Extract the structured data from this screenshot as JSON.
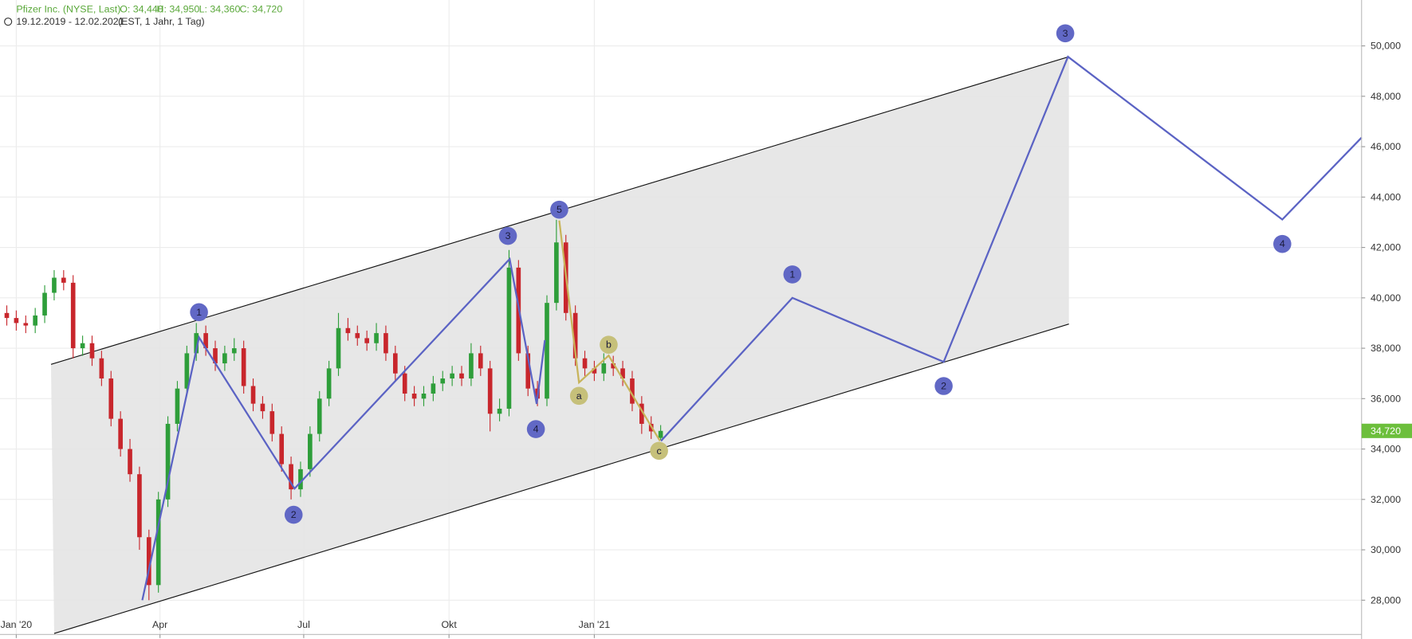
{
  "chart_data": {
    "type": "candlestick",
    "header": {
      "title": "Pfizer Inc. (NYSE, Last)",
      "ohlc": [
        "O: 34,440",
        "H: 34,950",
        "L: 34,360",
        "C: 34,720"
      ],
      "range": "19.12.2019 - 12.02.2021",
      "info": "(EST, 1 Jahr, 1 Tag)"
    },
    "xlim": [
      -10.3,
      851.8
    ],
    "ylim": [
      26.64,
      51.82
    ],
    "xticks": [
      {
        "value": 0,
        "label": "Jan '20"
      },
      {
        "value": 91,
        "label": "Apr"
      },
      {
        "value": 182,
        "label": "Jul"
      },
      {
        "value": 274,
        "label": "Okt"
      },
      {
        "value": 366,
        "label": "Jan '21"
      }
    ],
    "yticks": [
      {
        "value": 28,
        "label": "28,000"
      },
      {
        "value": 30,
        "label": "30,000"
      },
      {
        "value": 32,
        "label": "32,000"
      },
      {
        "value": 34,
        "label": "34,000"
      },
      {
        "value": 36,
        "label": "36,000"
      },
      {
        "value": 38,
        "label": "38,000"
      },
      {
        "value": 40,
        "label": "40,000"
      },
      {
        "value": 42,
        "label": "42,000"
      },
      {
        "value": 44,
        "label": "44,000"
      },
      {
        "value": 46,
        "label": "46,000"
      },
      {
        "value": 48,
        "label": "48,000"
      },
      {
        "value": 50,
        "label": "50,000"
      }
    ],
    "grid": true,
    "up_color": "#2e9e3a",
    "down_color": "#c8262c",
    "x": [
      -12,
      -6,
      0,
      6,
      12,
      18,
      24,
      30,
      36,
      42,
      48,
      54,
      60,
      66,
      72,
      78,
      84,
      90,
      96,
      102,
      108,
      114,
      120,
      126,
      132,
      138,
      144,
      150,
      156,
      162,
      168,
      174,
      180,
      186,
      192,
      198,
      204,
      210,
      216,
      222,
      228,
      234,
      240,
      246,
      252,
      258,
      264,
      270,
      276,
      282,
      288,
      294,
      300,
      306,
      312,
      318,
      324,
      330,
      336,
      342,
      348,
      354,
      360,
      366,
      372,
      378,
      384,
      390,
      396,
      402,
      408
    ],
    "open": [
      39.5,
      39.4,
      39.2,
      39.0,
      38.9,
      39.3,
      40.2,
      40.8,
      40.6,
      38.0,
      38.2,
      37.6,
      36.8,
      35.2,
      34.0,
      33.0,
      30.5,
      28.6,
      32.0,
      35.0,
      36.4,
      37.8,
      38.6,
      38.0,
      37.4,
      37.8,
      38.0,
      36.5,
      35.8,
      35.5,
      34.6,
      33.4,
      32.4,
      33.2,
      34.6,
      36.0,
      37.2,
      38.8,
      38.6,
      38.4,
      38.2,
      38.6,
      37.8,
      37.0,
      36.2,
      36.0,
      36.2,
      36.6,
      36.8,
      37.0,
      36.8,
      37.8,
      37.2,
      35.4,
      35.6,
      41.2,
      37.8,
      36.4,
      36.0,
      39.8,
      42.2,
      39.4,
      37.6,
      37.2,
      37.0,
      37.4,
      37.2,
      36.8,
      35.8,
      35.0,
      34.44
    ],
    "high": [
      39.8,
      39.7,
      39.5,
      39.3,
      39.6,
      40.5,
      41.1,
      41.1,
      40.9,
      38.5,
      38.5,
      37.9,
      37.1,
      35.5,
      34.4,
      33.3,
      30.8,
      32.3,
      35.3,
      36.7,
      38.1,
      39.0,
      38.9,
      38.3,
      38.1,
      38.4,
      38.3,
      36.8,
      36.1,
      35.8,
      34.9,
      33.7,
      33.5,
      34.9,
      36.3,
      37.5,
      39.4,
      39.2,
      38.9,
      38.7,
      39.0,
      38.9,
      38.1,
      37.3,
      36.5,
      36.5,
      36.9,
      37.1,
      37.3,
      37.3,
      38.2,
      38.1,
      37.5,
      36.0,
      41.9,
      41.5,
      38.1,
      36.7,
      40.1,
      43.1,
      42.5,
      39.7,
      37.9,
      37.5,
      37.8,
      37.7,
      37.5,
      37.1,
      36.1,
      35.3,
      34.95
    ],
    "low": [
      39.1,
      38.9,
      38.7,
      38.6,
      38.6,
      39.0,
      39.9,
      40.3,
      37.6,
      37.7,
      37.3,
      36.5,
      34.9,
      33.7,
      32.7,
      30.0,
      28.0,
      28.3,
      31.7,
      34.7,
      36.1,
      37.5,
      37.7,
      37.1,
      37.1,
      37.5,
      36.2,
      35.5,
      35.2,
      34.3,
      33.1,
      32.0,
      32.1,
      32.9,
      34.3,
      35.7,
      36.9,
      38.3,
      38.1,
      37.9,
      37.9,
      37.5,
      36.7,
      35.9,
      35.7,
      35.7,
      35.9,
      36.3,
      36.5,
      36.5,
      36.5,
      36.9,
      34.7,
      35.1,
      35.3,
      37.5,
      36.1,
      35.7,
      35.7,
      39.5,
      39.1,
      37.3,
      36.9,
      36.7,
      36.7,
      36.9,
      36.5,
      35.5,
      34.6,
      34.4,
      34.36
    ],
    "close": [
      39.4,
      39.2,
      39.0,
      38.9,
      39.3,
      40.2,
      40.8,
      40.6,
      38.0,
      38.2,
      37.6,
      36.8,
      35.2,
      34.0,
      33.0,
      30.5,
      28.6,
      32.0,
      35.0,
      36.4,
      37.8,
      38.6,
      38.0,
      37.4,
      37.8,
      38.0,
      36.5,
      35.8,
      35.5,
      34.6,
      33.4,
      32.4,
      33.2,
      34.6,
      36.0,
      37.2,
      38.8,
      38.6,
      38.4,
      38.2,
      38.6,
      37.8,
      37.0,
      36.2,
      36.0,
      36.2,
      36.6,
      36.8,
      37.0,
      36.8,
      37.8,
      37.2,
      35.4,
      35.6,
      41.2,
      37.8,
      36.4,
      36.0,
      39.8,
      42.2,
      39.4,
      37.6,
      37.2,
      37.0,
      37.4,
      37.2,
      36.8,
      35.8,
      35.0,
      34.7,
      34.72
    ],
    "last_price": {
      "value": 34.72,
      "label": "34,720",
      "color": "#6cbf3c"
    },
    "channel": {
      "color": "#111111",
      "fill": "#e4e4e4",
      "upper": {
        "x": [
          22,
          666.5
        ],
        "y": [
          37.36,
          49.57
        ]
      },
      "lower": {
        "x": [
          24,
          666.5
        ],
        "y": [
          26.68,
          38.96
        ]
      }
    },
    "waves": [
      {
        "color": "#5b63c4",
        "x": [
          79.8,
          115.7,
          176.2,
          312.4,
          329.5,
          334.7
        ],
        "y": [
          28.0,
          38.43,
          32.43,
          41.54,
          35.79,
          38.32
        ]
      },
      {
        "color": "#5b63c4",
        "x": [
          408.2,
          491.4,
          587.2,
          665.9,
          801.6,
          851.8
        ],
        "y": [
          34.32,
          40.0,
          37.46,
          49.57,
          43.11,
          46.36
        ]
      },
      {
        "color": "#c8b45a",
        "x": [
          343.8,
          356.3,
          375.1,
          407.6
        ],
        "y": [
          43.07,
          36.64,
          37.71,
          34.32
        ]
      }
    ],
    "wave_labels": [
      {
        "text": "1",
        "x": 115.7,
        "y": 39.43,
        "color": "#6168c5"
      },
      {
        "text": "2",
        "x": 175.6,
        "y": 31.39,
        "color": "#6168c5"
      },
      {
        "text": "3",
        "x": 311.3,
        "y": 42.46,
        "color": "#6168c5"
      },
      {
        "text": "4",
        "x": 329.0,
        "y": 34.79,
        "color": "#6168c5"
      },
      {
        "text": "5",
        "x": 343.8,
        "y": 43.5,
        "color": "#6168c5"
      },
      {
        "text": "1",
        "x": 491.4,
        "y": 40.93,
        "color": "#6168c5"
      },
      {
        "text": "2",
        "x": 587.2,
        "y": 36.5,
        "color": "#6168c5"
      },
      {
        "text": "3",
        "x": 664.2,
        "y": 50.5,
        "color": "#6168c5"
      },
      {
        "text": "4",
        "x": 801.6,
        "y": 42.14,
        "color": "#6168c5"
      },
      {
        "text": "a",
        "x": 356.3,
        "y": 36.11,
        "color": "#c6c07a"
      },
      {
        "text": "b",
        "x": 375.1,
        "y": 38.14,
        "color": "#c6c07a"
      },
      {
        "text": "c",
        "x": 407.0,
        "y": 33.93,
        "color": "#c6c07a"
      }
    ]
  }
}
